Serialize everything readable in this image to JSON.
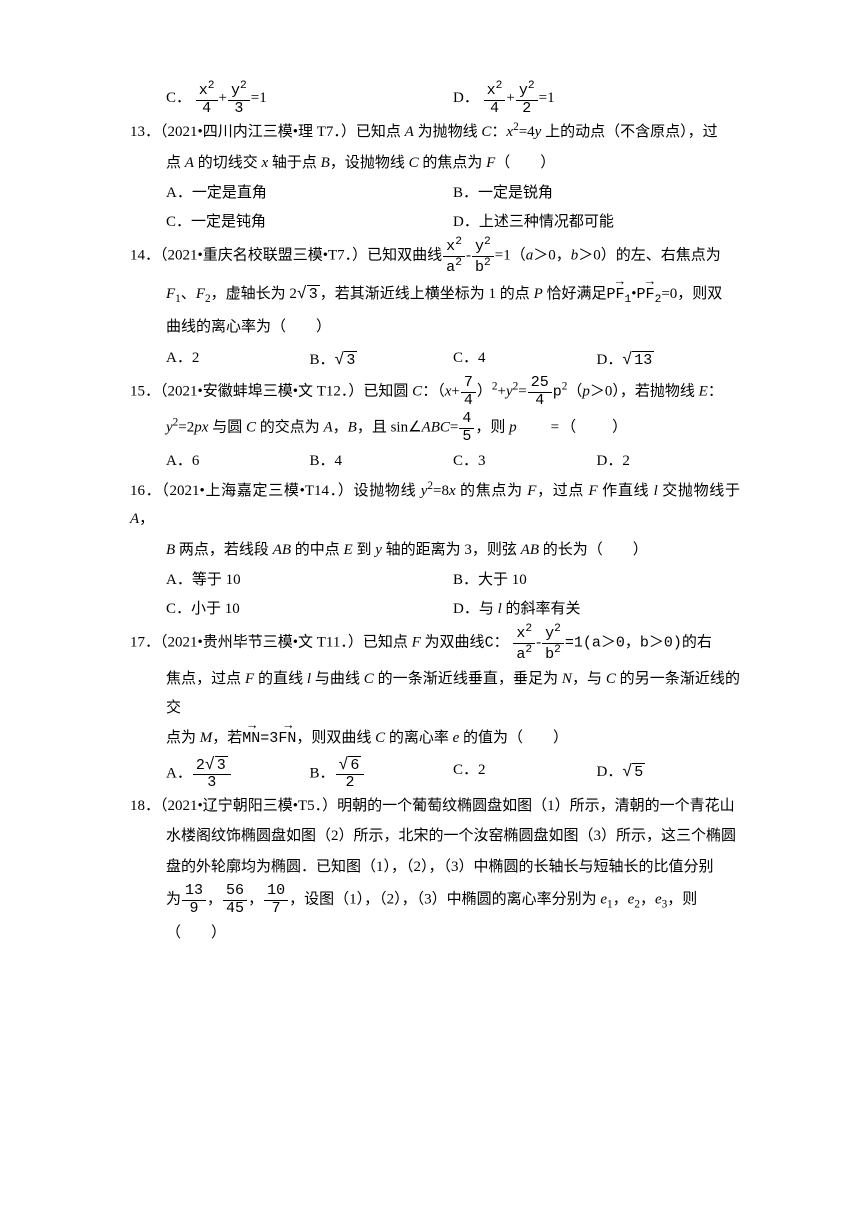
{
  "q12_options": {
    "C_pre": "C．",
    "C_num_a": "x",
    "C_num_b": "y",
    "C_den_a": "4",
    "C_den_b": "3",
    "C_eq": "=1",
    "D_pre": "D．",
    "D_num_a": "x",
    "D_num_b": "y",
    "D_den_a": "4",
    "D_den_b": "2",
    "D_eq": "=1"
  },
  "q13": {
    "stem_a": "13．（2021•四川内江三模•理 T7．）已知点 ",
    "stem_A": "A",
    "stem_b": " 为抛物线 ",
    "stem_C": "C",
    "stem_c": "：",
    "stem_eq_l": "x",
    "stem_eq_m": "=4",
    "stem_eq_r": "y",
    "stem_d": " 上的动点（不含原点），过",
    "line2_a": "点 ",
    "line2_A": "A",
    "line2_b": " 的切线交 ",
    "line2_x": "x",
    "line2_c": " 轴于点 ",
    "line2_B": "B",
    "line2_d": "，设抛物线 ",
    "line2_C": "C",
    "line2_e": " 的焦点为 ",
    "line2_F": "F",
    "line2_f": "（　　）",
    "optA": "A．一定是直角",
    "optB": "B．一定是锐角",
    "optC": "C．一定是钝角",
    "optD": "D．上述三种情况都可能"
  },
  "q14": {
    "stem_a": "14．（2021•重庆名校联盟三模•T7．）已知双曲线",
    "frac_xa_num": "x",
    "frac_xa_den": "a",
    "mid": "-",
    "frac_yb_num": "y",
    "frac_yb_den": "b",
    "stem_b": "=1（",
    "a": "a",
    "gt0a": "＞0，",
    "b": "b",
    "gt0b": "＞0）的左、右焦点为",
    "line2_a": "F",
    "line2_b": "、",
    "line2_c": "F",
    "line2_d": "，虚轴长为 2",
    "sqrt3": "3",
    "line2_e": "，若其渐近线上横坐标为 1 的点 ",
    "P": "P",
    "line2_f": " 恰好满足",
    "pf1": "PF",
    "pf1s": "1",
    "dot": "•",
    "pf2": "PF",
    "pf2s": "2",
    "eq0": "=0，则双",
    "line3": "曲线的离心率为（　　）",
    "optA": "A．2",
    "optB_pre": "B．",
    "optB_sqrt": "3",
    "optC": "C．4",
    "optD_pre": "D．",
    "optD_sqrt": "13"
  },
  "q15": {
    "stem_a": "15．（2021•安徽蚌埠三模•文 T12．）已知圆 ",
    "C": "C",
    "colon": "：（",
    "x": "x",
    "plus": "+",
    "f74n": "7",
    "f74d": "4",
    "rp": "）",
    "plus2": "+",
    "y": "y",
    "eq": "=",
    "f254n": "25",
    "f254d": "4",
    "psq": "p",
    "cond": "（",
    "p2": "p",
    "cond2": "＞0），若抛物线 ",
    "E": "E",
    "colon2": "：",
    "line2_a": "y",
    "line2_eq": "=2",
    "line2_p": "p",
    "line2_x": "x",
    "line2_b": " 与圆 ",
    "line2_C": "C",
    "line2_c": " 的交点为 ",
    "line2_A": "A",
    "comma": "，",
    "line2_B": "B",
    "line2_d": "，且 sin∠",
    "abc": "ABC",
    "eq2": "=",
    "f45n": "4",
    "f45d": "5",
    "line2_e": "，则 ",
    "line2_p2": "p",
    "line2_f": "　　=（　　）",
    "optA": "A．6",
    "optB": "B．4",
    "optC": "C．3",
    "optD": "D．2"
  },
  "q16": {
    "stem_a": "16．（2021•上海嘉定三模•T14．）设抛物线 ",
    "y": "y",
    "eq": "=8",
    "x": "x",
    "stem_b": " 的焦点为 ",
    "F": "F",
    "stem_c": "，过点 ",
    "F2": "F",
    "stem_d": " 作直线 ",
    "l": "l",
    "stem_e": " 交抛物线于 ",
    "A": "A",
    "comma": "，",
    "line2_B": "B",
    "line2_a": " 两点，若线段 ",
    "AB": "AB",
    "line2_b": " 的中点 ",
    "E": "E",
    "line2_c": " 到 ",
    "yax": "y",
    "line2_d": " 轴的距离为 3，则弦 ",
    "AB2": "AB",
    "line2_e": " 的长为（　　）",
    "optA": "A．等于 10",
    "optB": "B．大于 10",
    "optC": "C．小于 10",
    "optD_pre": "D．与 ",
    "optD_l": "l",
    "optD_post": " 的斜率有关"
  },
  "q17": {
    "stem_a": "17．（2021•贵州毕节三模•文 T11．）已知点 ",
    "F": "F",
    "stem_b": " 为双曲线",
    "Ccol": "C：",
    "frac_xa_num": "x",
    "frac_xa_den": "a",
    "minus": "-",
    "frac_yb_num": "y",
    "frac_yb_den": "b",
    "eq1": "=1(a＞0，b＞0)",
    "stem_c": "的右",
    "line2_a": "焦点，过点 ",
    "F2": "F",
    "line2_b": " 的直线 ",
    "l": "l",
    "line2_c": " 与曲线 ",
    "C": "C",
    "line2_d": " 的一条渐近线垂直，垂足为 ",
    "N": "N",
    "line2_e": "，与 ",
    "C2": "C",
    "line2_f": " 的另一条渐近线的交",
    "line3_a": "点为 ",
    "M": "M",
    "line3_b": "，若",
    "MN": "MN",
    "eq3": "=3",
    "FN": "FN",
    "line3_c": "，则双曲线 ",
    "C3": "C",
    "line3_d": " 的离心率 ",
    "e": "e",
    "line3_e": " 的值为（　　）",
    "optA_pre": "A．",
    "optA_num_c": "2",
    "optA_num_s": "3",
    "optA_den": "3",
    "optB_pre": "B．",
    "optB_num_s": "6",
    "optB_den": "2",
    "optC": "C．2",
    "optD_pre": "D．",
    "optD_sqrt": "5"
  },
  "q18": {
    "stem_a": "18．（2021•辽宁朝阳三模•T5．）明朝的一个葡萄纹椭圆盘如图（1）所示，清朝的一个青花山",
    "line2": "水楼阁纹饰椭圆盘如图（2）所示，北宋的一个汝窑椭圆盘如图（3）所示，这三个椭圆",
    "line3": "盘的外轮廓均为椭圆．已知图（1），（2），（3）中椭圆的长轴长与短轴长的比值分别",
    "line4_a": "为",
    "f1n": "13",
    "f1d": "9",
    "c1": "，",
    "f2n": "56",
    "f2d": "45",
    "c2": "，",
    "f3n": "10",
    "f3d": "7",
    "line4_b": "，设图（1），（2），（3）中椭圆的离心率分别为 ",
    "e1": "e",
    "s1": "1",
    "cc1": "，",
    "e2": "e",
    "s2": "2",
    "cc2": "，",
    "e3": "e",
    "s3": "3",
    "line4_c": "，则",
    "line5": "（　　）"
  }
}
